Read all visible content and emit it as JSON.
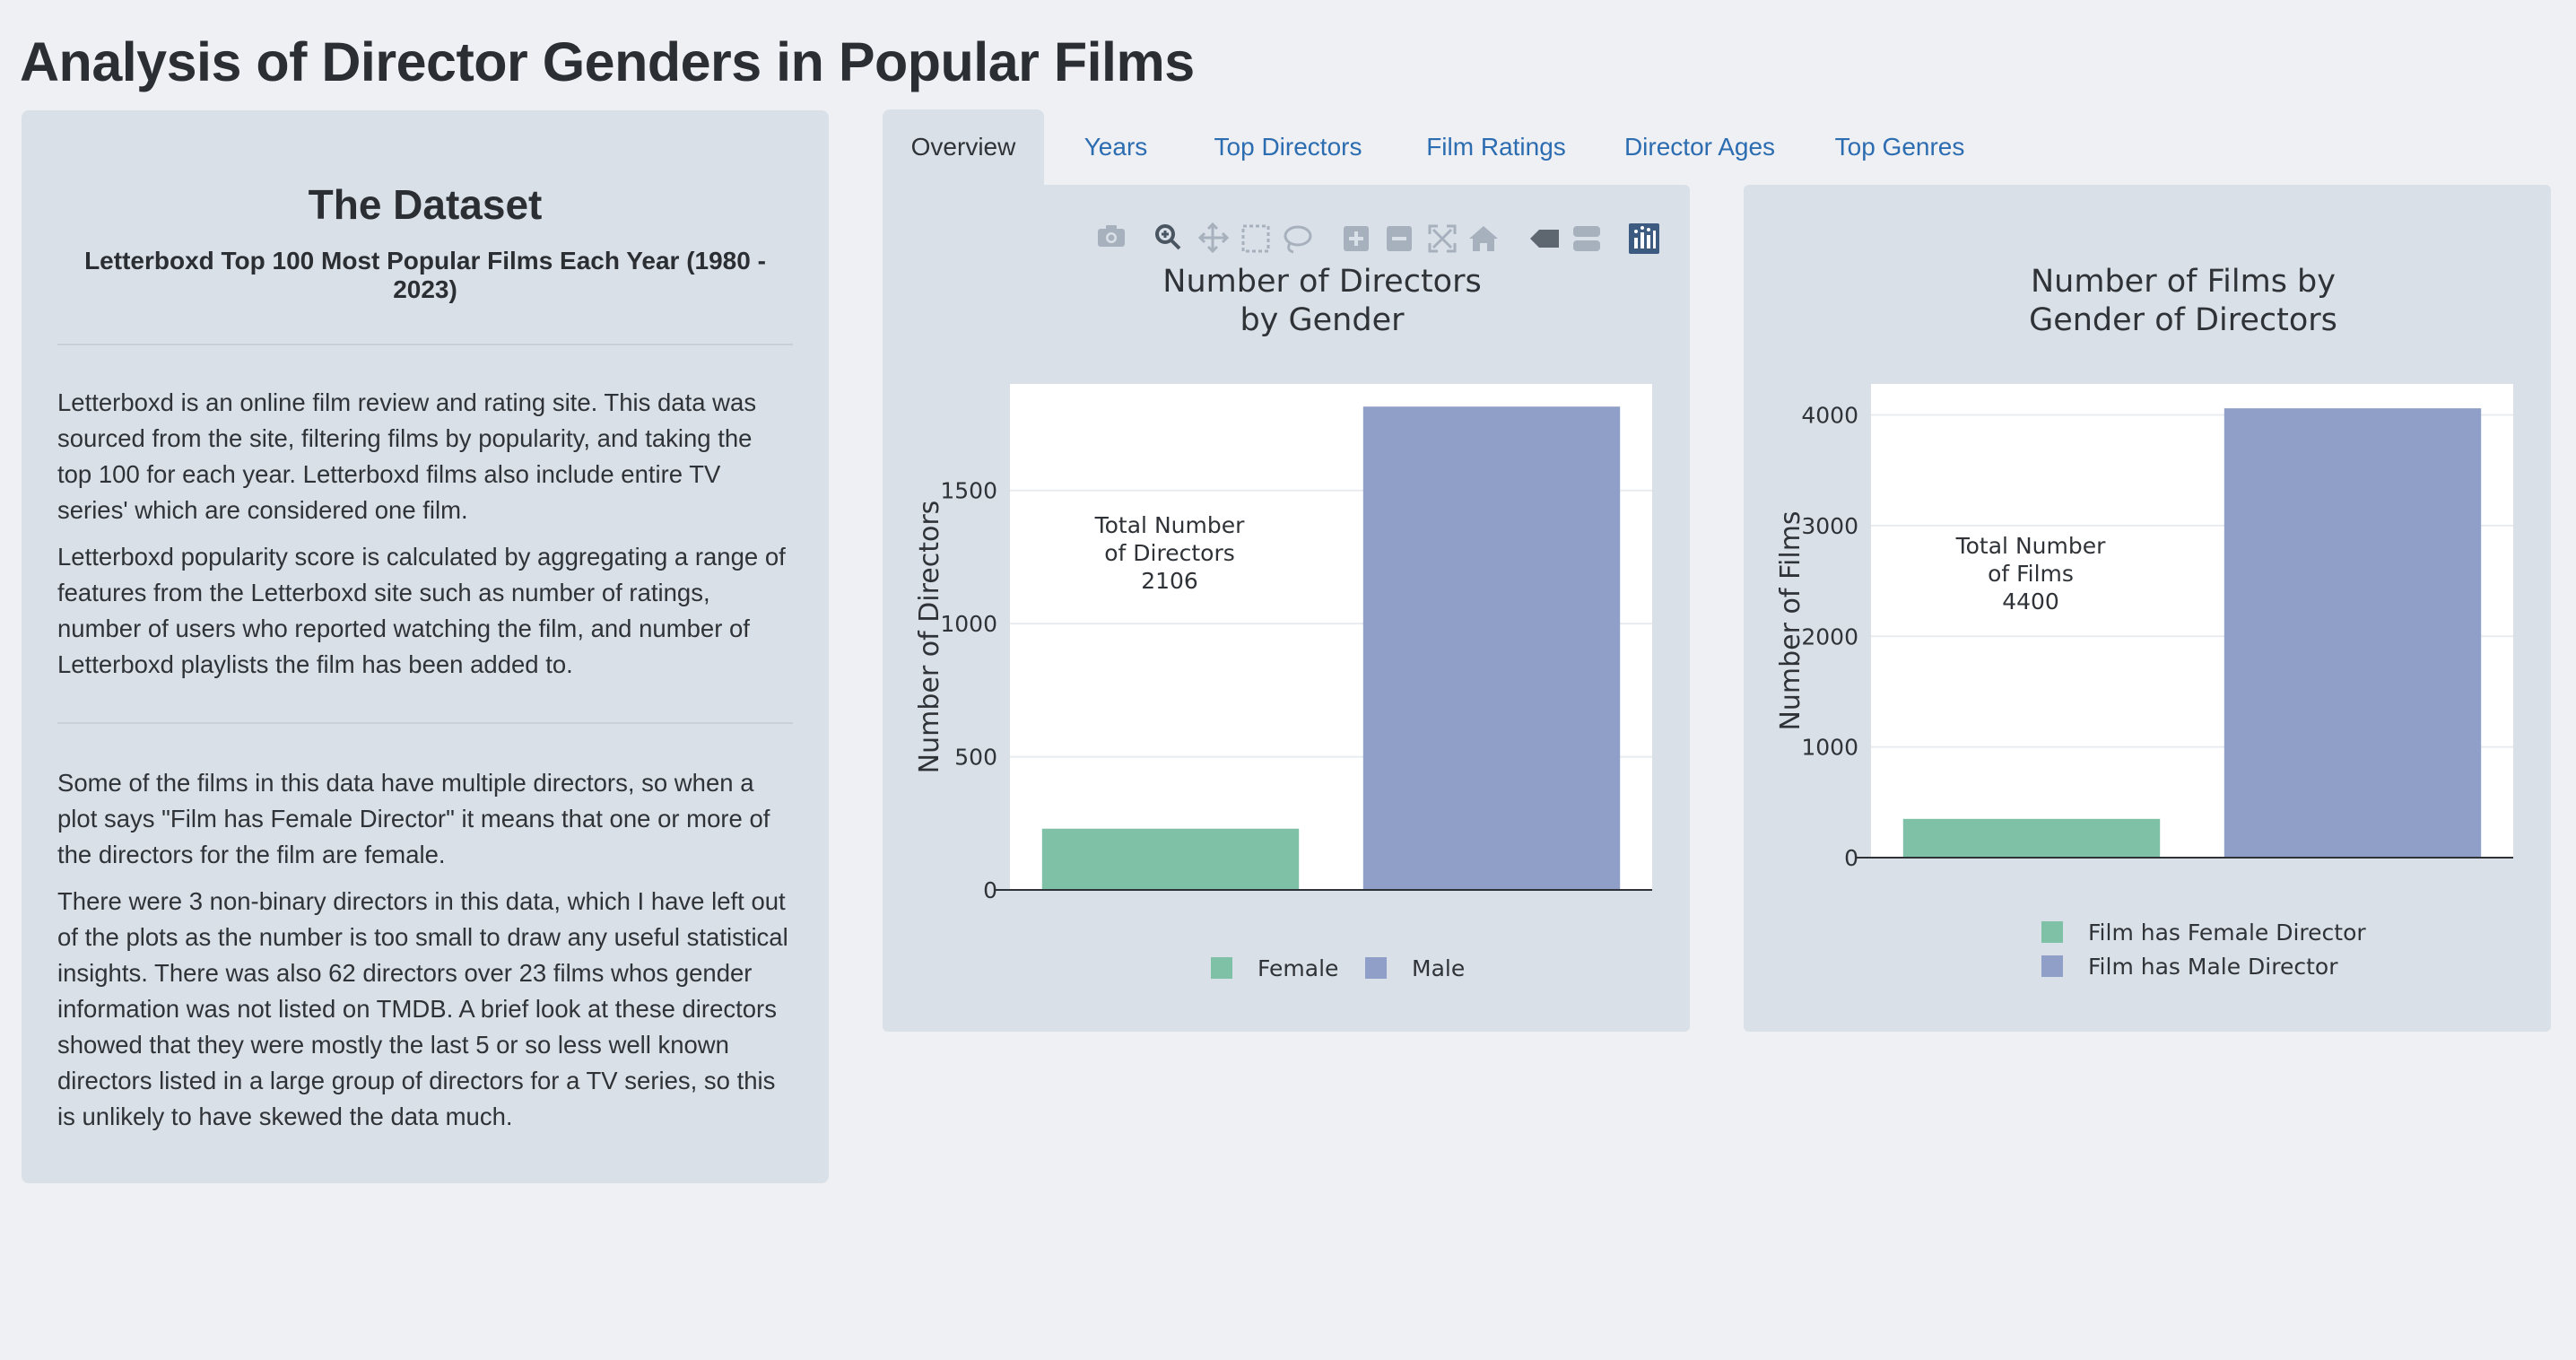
{
  "page": {
    "title": "Analysis of Director Genders in Popular Films"
  },
  "sidebar": {
    "heading": "The Dataset",
    "subheading": "Letterboxd Top 100 Most Popular Films Each Year (1980 - 2023)",
    "paragraphs": [
      "Letterboxd is an online film review and rating site. This data was sourced from the site, filtering films by popularity, and taking the top 100 for each year. Letterboxd films also include entire TV series' which are considered one film.",
      "Letterboxd popularity score is calculated by aggregating a range of features from the Letterboxd site such as number of ratings, number of users who reported watching the film, and number of Letterboxd playlists the film has been added to.",
      "Some of the films in this data have multiple directors, so when a plot says \"Film has Female Director\" it means that one or more of the directors for the film are female.",
      "There were 3 non-binary directors in this data, which I have left out of the plots as the number is too small to draw any useful statistical insights. There was also 62 directors over 23 films whos gender information was not listed on TMDB. A brief look at these directors showed that they were mostly the last 5 or so less well known directors listed in a large group of directors for a TV series, so this is unlikely to have skewed the data much."
    ]
  },
  "tabs": [
    {
      "label": "Overview",
      "active": true
    },
    {
      "label": "Years",
      "active": false
    },
    {
      "label": "Top Directors",
      "active": false
    },
    {
      "label": "Film Ratings",
      "active": false
    },
    {
      "label": "Director Ages",
      "active": false
    },
    {
      "label": "Top Genres",
      "active": false
    }
  ],
  "modebar": {
    "icons": [
      "camera-icon",
      "zoom-icon",
      "pan-icon",
      "box-select-icon",
      "lasso-select-icon",
      "zoom-in-icon",
      "zoom-out-icon",
      "autoscale-icon",
      "reset-axes-icon",
      "spike-lines-icon",
      "compare-hover-icon",
      "plotly-logo-icon"
    ]
  },
  "colors": {
    "female": "#7fc1a6",
    "male": "#8f9fc7",
    "tab_link": "#2c6cb0",
    "panel": "#dae0e8",
    "background": "#eef0f4"
  },
  "chart_data": [
    {
      "type": "bar",
      "title": [
        "Number of Directors",
        "by Gender"
      ],
      "xlabel": "",
      "ylabel": "Number of Directors",
      "categories": [
        "Female",
        "Male"
      ],
      "values": [
        230,
        1815
      ],
      "ylim": [
        0,
        1900
      ],
      "yticks": [
        0,
        500,
        1000,
        1500
      ],
      "annotation": [
        "Total Number",
        "of Directors",
        "2106"
      ],
      "legend": {
        "entries": [
          "Female",
          "Male"
        ],
        "placement": "bottom-horizontal"
      },
      "grid": true
    },
    {
      "type": "bar",
      "title": [
        "Number of Films by",
        "Gender of Directors"
      ],
      "xlabel": "",
      "ylabel": "Number of Films",
      "categories": [
        "Film has Female Director",
        "Film has Male Director"
      ],
      "values": [
        350,
        4060
      ],
      "ylim": [
        0,
        4280
      ],
      "yticks": [
        0,
        1000,
        2000,
        3000,
        4000
      ],
      "annotation": [
        "Total Number",
        "of Films",
        "4400"
      ],
      "legend": {
        "entries": [
          "Film has Female Director",
          "Film has Male Director"
        ],
        "placement": "bottom-vertical"
      },
      "grid": true
    }
  ]
}
